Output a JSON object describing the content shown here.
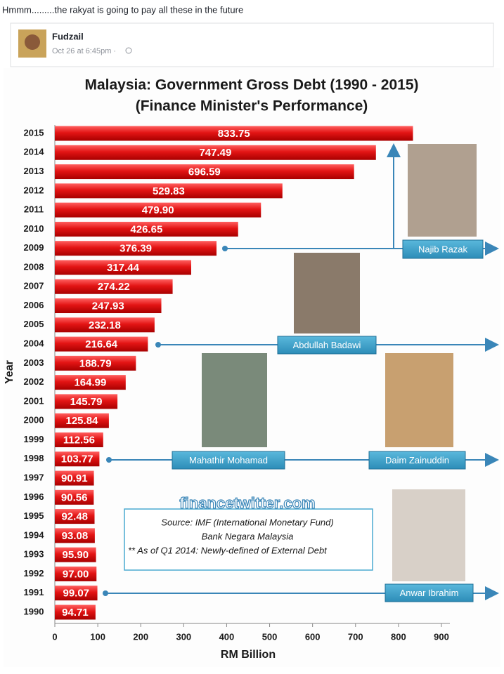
{
  "post": {
    "text": "Hmmm.........the rakyat is going to pay all these in the future",
    "author": "Fudzail",
    "timestamp": "Oct 26 at 6:45pm ·"
  },
  "chart_data": {
    "type": "bar",
    "orientation": "horizontal",
    "title": "Malaysia: Government Gross Debt (1990 - 2015)",
    "subtitle": "(Finance Minister's Performance)",
    "x_label": "RM Billion",
    "y_label": "Year",
    "categories": [
      "2015",
      "2014",
      "2013",
      "2012",
      "2011",
      "2010",
      "2009",
      "2008",
      "2007",
      "2006",
      "2005",
      "2004",
      "2003",
      "2002",
      "2001",
      "2000",
      "1999",
      "1998",
      "1997",
      "1996",
      "1995",
      "1994",
      "1993",
      "1992",
      "1991",
      "1990"
    ],
    "values": [
      833.75,
      747.49,
      696.59,
      529.83,
      479.9,
      426.65,
      376.39,
      317.44,
      274.22,
      247.93,
      232.18,
      216.64,
      188.79,
      164.99,
      145.79,
      125.84,
      112.56,
      103.77,
      90.91,
      90.56,
      92.48,
      93.08,
      95.9,
      97.0,
      99.07,
      94.71
    ],
    "value_labels": [
      "833.75",
      "747.49",
      "696.59",
      "529.83",
      "479.90",
      "426.65",
      "376.39",
      "317.44",
      "274.22",
      "247.93",
      "232.18",
      "216.64",
      "188.79",
      "164.99",
      "145.79",
      "125.84",
      "112.56",
      "103.77",
      "90.91",
      "90.56",
      "92.48",
      "93.08",
      "95.90",
      "97.00",
      "99.07",
      "94.71"
    ],
    "color": "#e31414",
    "xlim": [
      0,
      900
    ],
    "xticks": [
      0,
      100,
      200,
      300,
      400,
      500,
      600,
      700,
      800,
      900
    ],
    "annotations": [
      "Najib Razak",
      "Abdullah Badawi",
      "Mahathir Mohamad",
      "Daim Zainuddin",
      "Anwar Ibrahim"
    ],
    "watermark": "financetwitter.com",
    "source": [
      "Source: IMF (International Monetary Fund)",
      "Bank Negara Malaysia",
      "** As of Q1 2014: Newly-defined of External Debt"
    ]
  }
}
